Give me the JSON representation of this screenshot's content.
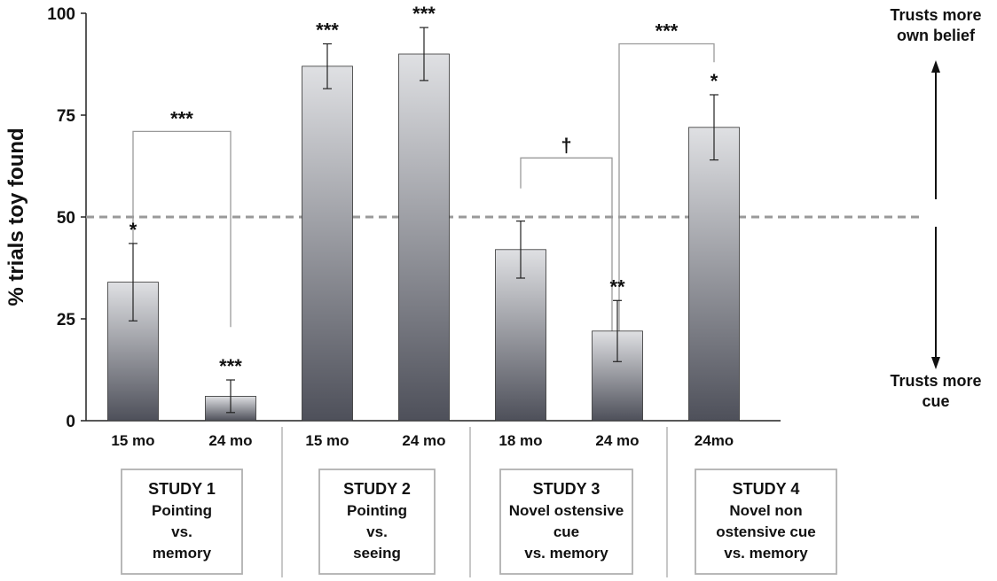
{
  "chart_data": {
    "type": "bar",
    "ylabel": "% trials toy found",
    "ylim": [
      0,
      100
    ],
    "yticks": [
      "0",
      "25",
      "50",
      "75",
      "100"
    ],
    "reference_line": 50,
    "categories": [
      "15 mo",
      "24 mo",
      "15 mo",
      "24 mo",
      "18 mo",
      "24 mo",
      "24mo"
    ],
    "values": [
      34,
      6,
      87,
      90,
      42,
      22,
      72
    ],
    "error": [
      9.5,
      4,
      5.5,
      6.5,
      7,
      7.5,
      8
    ],
    "significance": [
      "*",
      "***",
      "***",
      "***",
      "",
      "**",
      "*"
    ],
    "comparisons": [
      {
        "from": 0,
        "to": 1,
        "label": "***"
      },
      {
        "from": 4,
        "to": 5,
        "label": "†"
      },
      {
        "from": 5,
        "to": 6,
        "label": "***"
      }
    ],
    "right_labels": {
      "top": [
        "Trusts more",
        "own belief"
      ],
      "bottom": [
        "Trusts more",
        "cue"
      ]
    },
    "groups": [
      {
        "lines": [
          "STUDY 1",
          "Pointing",
          "vs.",
          "memory"
        ]
      },
      {
        "lines": [
          "STUDY 2",
          "Pointing",
          "vs.",
          "seeing"
        ]
      },
      {
        "lines": [
          "STUDY 3",
          "Novel ostensive",
          "cue",
          "vs. memory"
        ]
      },
      {
        "lines": [
          "STUDY 4",
          "Novel non",
          "ostensive cue",
          "vs. memory"
        ]
      }
    ]
  }
}
